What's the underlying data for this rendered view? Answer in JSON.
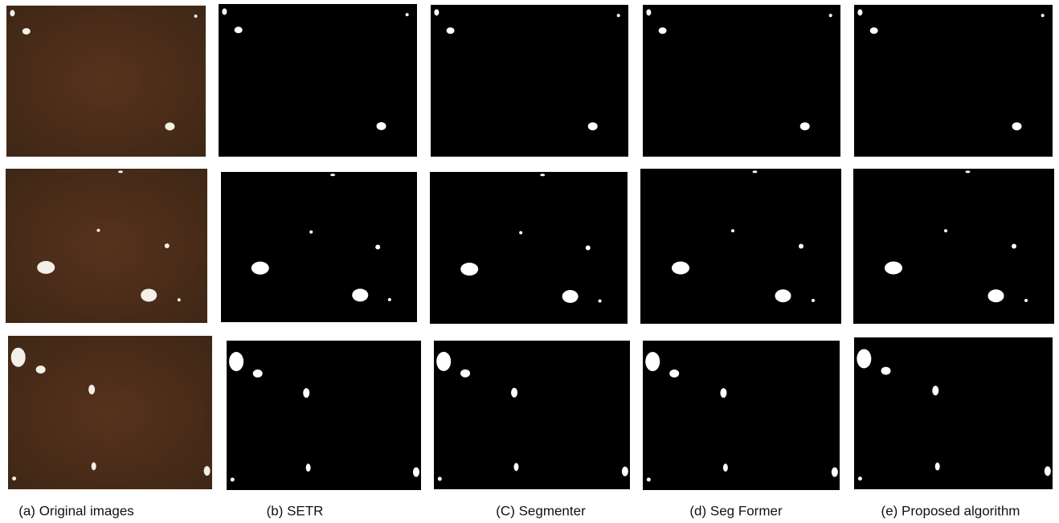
{
  "captions": [
    "(a) Original images",
    "(b) SETR",
    "(C) Segmenter",
    "(d) Seg Former",
    "(e) Proposed algorithm"
  ]
}
